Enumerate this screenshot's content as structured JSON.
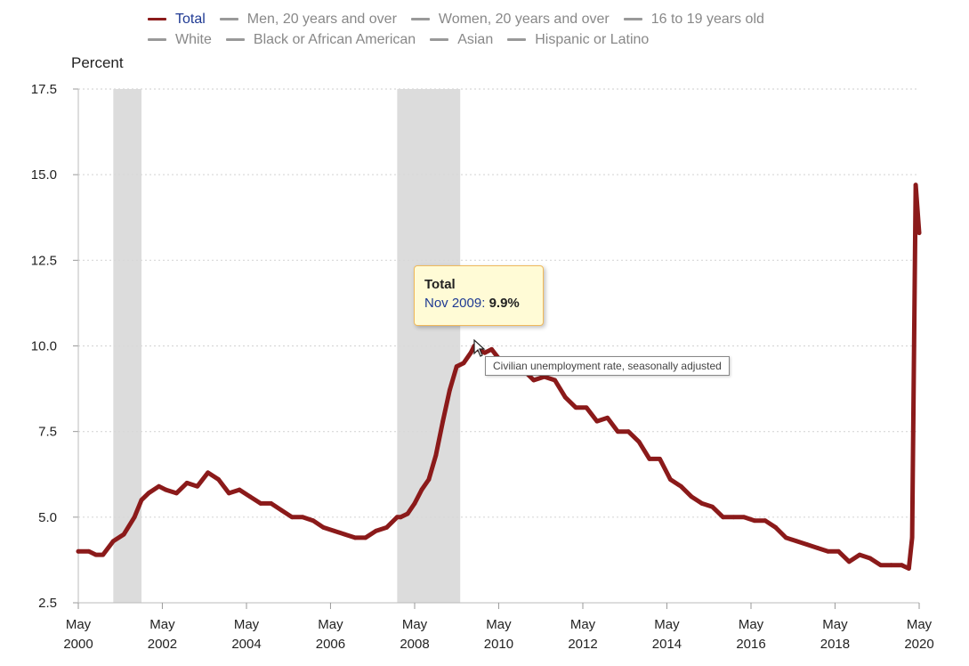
{
  "legend": {
    "row1": [
      "Total",
      "Men, 20 years and over",
      "Women, 20 years and over",
      "16 to 19 years old"
    ],
    "row2": [
      "White",
      "Black or African American",
      "Asian",
      "Hispanic or Latino"
    ],
    "active": "Total"
  },
  "colors": {
    "total_line": "#8b1a1a",
    "recession": "#dcdcdc",
    "grid": "#d8d8d8",
    "legend_active_text": "#1f3a93"
  },
  "tooltip": {
    "title": "Total",
    "date": "Nov 2009",
    "value": "9.9%"
  },
  "hint": "Civilian unemployment rate, seasonally adjusted",
  "chart_data": {
    "type": "line",
    "ylabel": "Percent",
    "ylim": [
      2.5,
      17.5
    ],
    "yticks": [
      "17.5",
      "15.0",
      "12.5",
      "10.0",
      "7.5",
      "5.0",
      "2.5"
    ],
    "xticks": [
      {
        "month": "May",
        "year": "2000"
      },
      {
        "month": "May",
        "year": "2002"
      },
      {
        "month": "May",
        "year": "2004"
      },
      {
        "month": "May",
        "year": "2006"
      },
      {
        "month": "May",
        "year": "2008"
      },
      {
        "month": "May",
        "year": "2010"
      },
      {
        "month": "May",
        "year": "2012"
      },
      {
        "month": "May",
        "year": "2014"
      },
      {
        "month": "May",
        "year": "2016"
      },
      {
        "month": "May",
        "year": "2018"
      },
      {
        "month": "May",
        "year": "2020"
      }
    ],
    "grid": "horizontal dotted",
    "legend_position": "top",
    "recessions": [
      [
        "2001-03",
        "2001-11"
      ],
      [
        "2007-12",
        "2009-06"
      ]
    ],
    "series": [
      {
        "name": "Total",
        "dates": [
          "2000-05",
          "2000-08",
          "2000-10",
          "2000-12",
          "2001-03",
          "2001-06",
          "2001-09",
          "2001-11",
          "2002-01",
          "2002-04",
          "2002-06",
          "2002-09",
          "2002-12",
          "2003-03",
          "2003-06",
          "2003-09",
          "2003-12",
          "2004-03",
          "2004-06",
          "2004-09",
          "2004-12",
          "2005-03",
          "2005-06",
          "2005-09",
          "2005-12",
          "2006-03",
          "2006-06",
          "2006-09",
          "2006-12",
          "2007-03",
          "2007-06",
          "2007-09",
          "2007-12",
          "2008-01",
          "2008-03",
          "2008-05",
          "2008-07",
          "2008-09",
          "2008-11",
          "2009-01",
          "2009-03",
          "2009-05",
          "2009-07",
          "2009-09",
          "2009-10",
          "2009-11",
          "2010-01",
          "2010-03",
          "2010-06",
          "2010-09",
          "2010-12",
          "2011-03",
          "2011-06",
          "2011-09",
          "2011-12",
          "2012-03",
          "2012-06",
          "2012-09",
          "2012-12",
          "2013-03",
          "2013-06",
          "2013-09",
          "2013-12",
          "2014-03",
          "2014-06",
          "2014-09",
          "2014-12",
          "2015-03",
          "2015-06",
          "2015-09",
          "2015-12",
          "2016-03",
          "2016-06",
          "2016-09",
          "2016-12",
          "2017-03",
          "2017-06",
          "2017-09",
          "2017-12",
          "2018-03",
          "2018-06",
          "2018-09",
          "2018-12",
          "2019-03",
          "2019-06",
          "2019-09",
          "2019-12",
          "2020-02",
          "2020-03",
          "2020-04",
          "2020-05"
        ],
        "values": [
          4.0,
          4.0,
          3.9,
          3.9,
          4.3,
          4.5,
          5.0,
          5.5,
          5.7,
          5.9,
          5.8,
          5.7,
          6.0,
          5.9,
          6.3,
          6.1,
          5.7,
          5.8,
          5.6,
          5.4,
          5.4,
          5.2,
          5.0,
          5.0,
          4.9,
          4.7,
          4.6,
          4.5,
          4.4,
          4.4,
          4.6,
          4.7,
          5.0,
          5.0,
          5.1,
          5.4,
          5.8,
          6.1,
          6.8,
          7.8,
          8.7,
          9.4,
          9.5,
          9.8,
          10.0,
          9.9,
          9.8,
          9.9,
          9.5,
          9.5,
          9.3,
          9.0,
          9.1,
          9.0,
          8.5,
          8.2,
          8.2,
          7.8,
          7.9,
          7.5,
          7.5,
          7.2,
          6.7,
          6.7,
          6.1,
          5.9,
          5.6,
          5.4,
          5.3,
          5.0,
          5.0,
          5.0,
          4.9,
          4.9,
          4.7,
          4.4,
          4.3,
          4.2,
          4.1,
          4.0,
          4.0,
          3.7,
          3.9,
          3.8,
          3.6,
          3.6,
          3.6,
          3.5,
          4.4,
          14.7,
          13.3
        ]
      }
    ]
  }
}
